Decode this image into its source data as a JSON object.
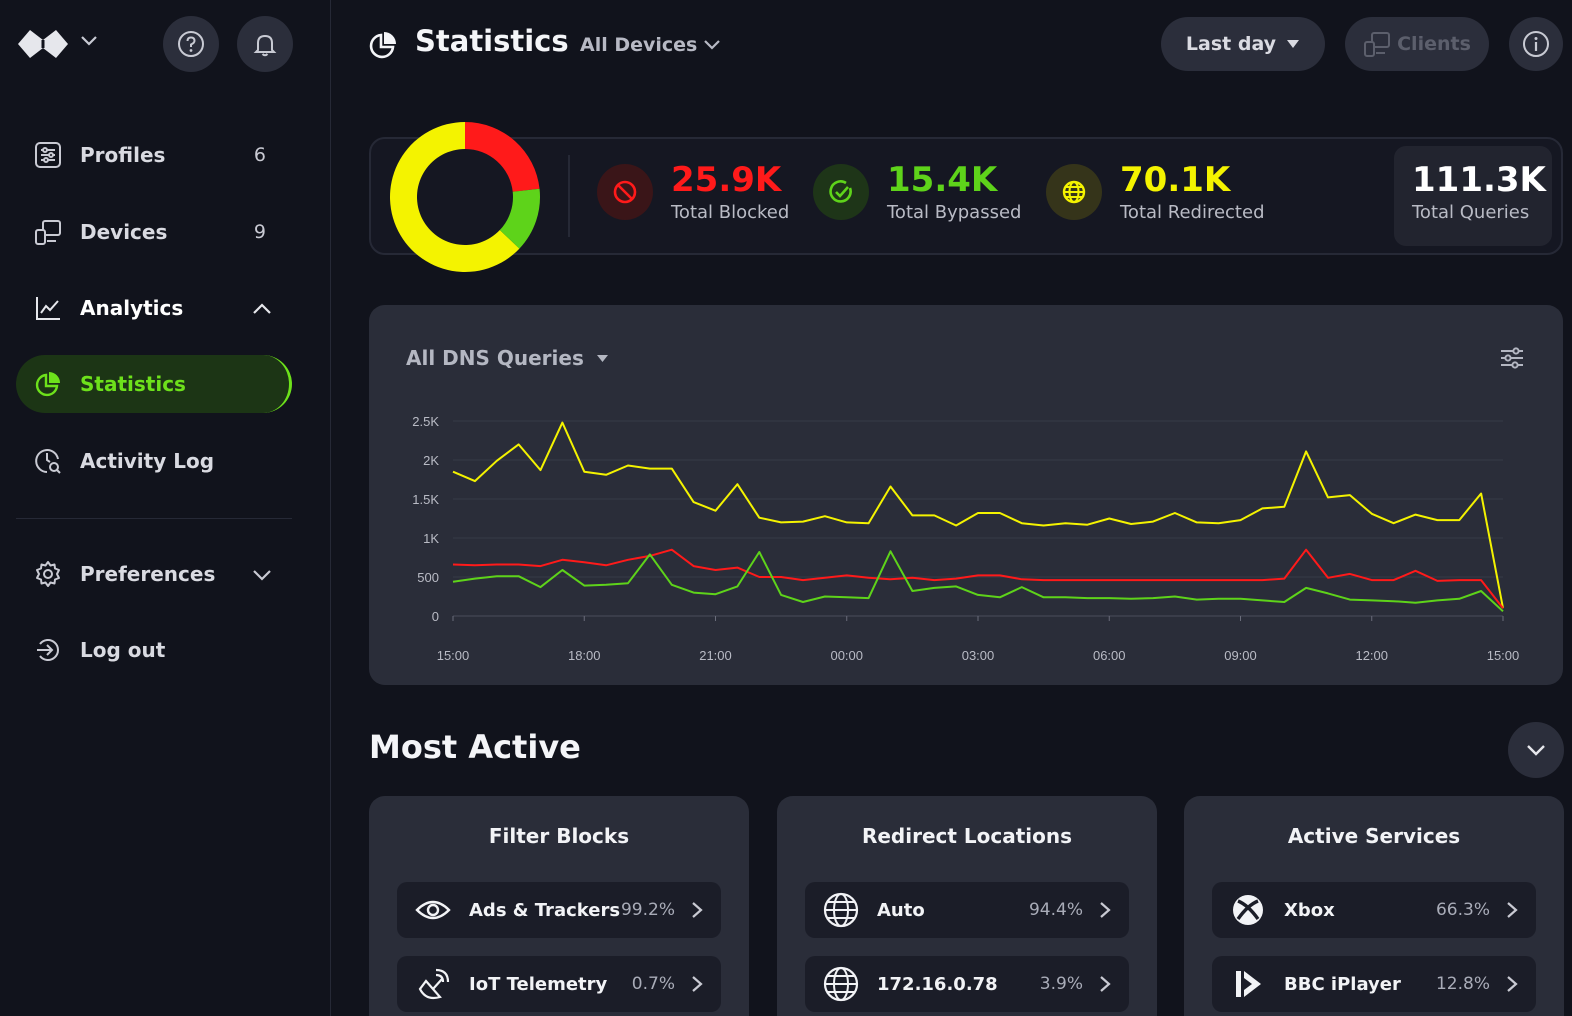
{
  "header": {
    "title": "Statistics",
    "device_filter": "All Devices",
    "range_label": "Last day",
    "clients_label": "Clients"
  },
  "sidebar": {
    "items": [
      {
        "label": "Profiles",
        "count": "6",
        "icon": "sliders-icon"
      },
      {
        "label": "Devices",
        "count": "9",
        "icon": "devices-icon"
      },
      {
        "label": "Analytics",
        "icon": "line-chart-icon"
      },
      {
        "label": "Statistics",
        "icon": "pie-icon",
        "active": true
      },
      {
        "label": "Activity Log",
        "icon": "search-log-icon"
      },
      {
        "label": "Preferences",
        "icon": "gear-icon"
      },
      {
        "label": "Log out",
        "icon": "logout-icon"
      }
    ]
  },
  "summary": {
    "blocked": {
      "value": "25.9K",
      "label": "Total Blocked",
      "color": "#ff1a1a"
    },
    "bypassed": {
      "value": "15.4K",
      "label": "Total Bypassed",
      "color": "#5ed31a"
    },
    "redirected": {
      "value": "70.1K",
      "label": "Total Redirected",
      "color": "#f4f300"
    },
    "total": {
      "value": "111.3K",
      "label": "Total Queries"
    }
  },
  "chart_title": "All DNS Queries",
  "chart_data": {
    "type": "line",
    "x_labels": [
      "15:00",
      "18:00",
      "21:00",
      "00:00",
      "03:00",
      "06:00",
      "09:00",
      "12:00",
      "15:00"
    ],
    "y_ticks": [
      "0",
      "500",
      "1K",
      "1.5K",
      "2K",
      "2.5K"
    ],
    "ylim": [
      0,
      2500
    ],
    "grid": true,
    "series": [
      {
        "color": "#f4f300",
        "values": [
          1850,
          1730,
          1990,
          2200,
          1870,
          2480,
          1850,
          1810,
          1930,
          1890,
          1890,
          1460,
          1350,
          1690,
          1260,
          1200,
          1210,
          1280,
          1200,
          1190,
          1660,
          1290,
          1290,
          1160,
          1320,
          1320,
          1190,
          1160,
          1190,
          1170,
          1250,
          1180,
          1210,
          1320,
          1200,
          1190,
          1230,
          1380,
          1400,
          2110,
          1520,
          1550,
          1310,
          1190,
          1300,
          1230,
          1230,
          1570,
          100
        ]
      },
      {
        "color": "#ff1a1a",
        "values": [
          660,
          650,
          660,
          660,
          640,
          720,
          690,
          650,
          720,
          770,
          850,
          640,
          590,
          620,
          500,
          500,
          460,
          490,
          520,
          490,
          470,
          490,
          460,
          480,
          520,
          520,
          470,
          460,
          460,
          460,
          460,
          460,
          460,
          460,
          460,
          460,
          460,
          460,
          480,
          850,
          490,
          540,
          460,
          460,
          580,
          450,
          460,
          460,
          100
        ]
      },
      {
        "color": "#5ed31a",
        "values": [
          440,
          480,
          510,
          510,
          370,
          590,
          390,
          400,
          420,
          790,
          400,
          300,
          280,
          380,
          820,
          270,
          180,
          250,
          240,
          230,
          830,
          320,
          360,
          380,
          270,
          240,
          370,
          240,
          240,
          230,
          230,
          220,
          230,
          250,
          210,
          220,
          220,
          200,
          180,
          360,
          290,
          210,
          200,
          190,
          170,
          200,
          220,
          320,
          60
        ]
      }
    ]
  },
  "most_active": {
    "title": "Most Active",
    "cards": [
      {
        "title": "Filter Blocks",
        "rows": [
          {
            "name": "Ads & Trackers",
            "pct": "99.2%",
            "icon": "eye-icon"
          },
          {
            "name": "IoT Telemetry",
            "pct": "0.7%",
            "icon": "satellite-icon"
          }
        ]
      },
      {
        "title": "Redirect Locations",
        "rows": [
          {
            "name": "Auto",
            "pct": "94.4%",
            "icon": "globe-icon"
          },
          {
            "name": "172.16.0.78",
            "pct": "3.9%",
            "icon": "globe-icon"
          }
        ]
      },
      {
        "title": "Active Services",
        "rows": [
          {
            "name": "Xbox",
            "pct": "66.3%",
            "icon": "xbox-icon"
          },
          {
            "name": "BBC iPlayer",
            "pct": "12.8%",
            "icon": "iplayer-icon"
          }
        ]
      }
    ]
  }
}
